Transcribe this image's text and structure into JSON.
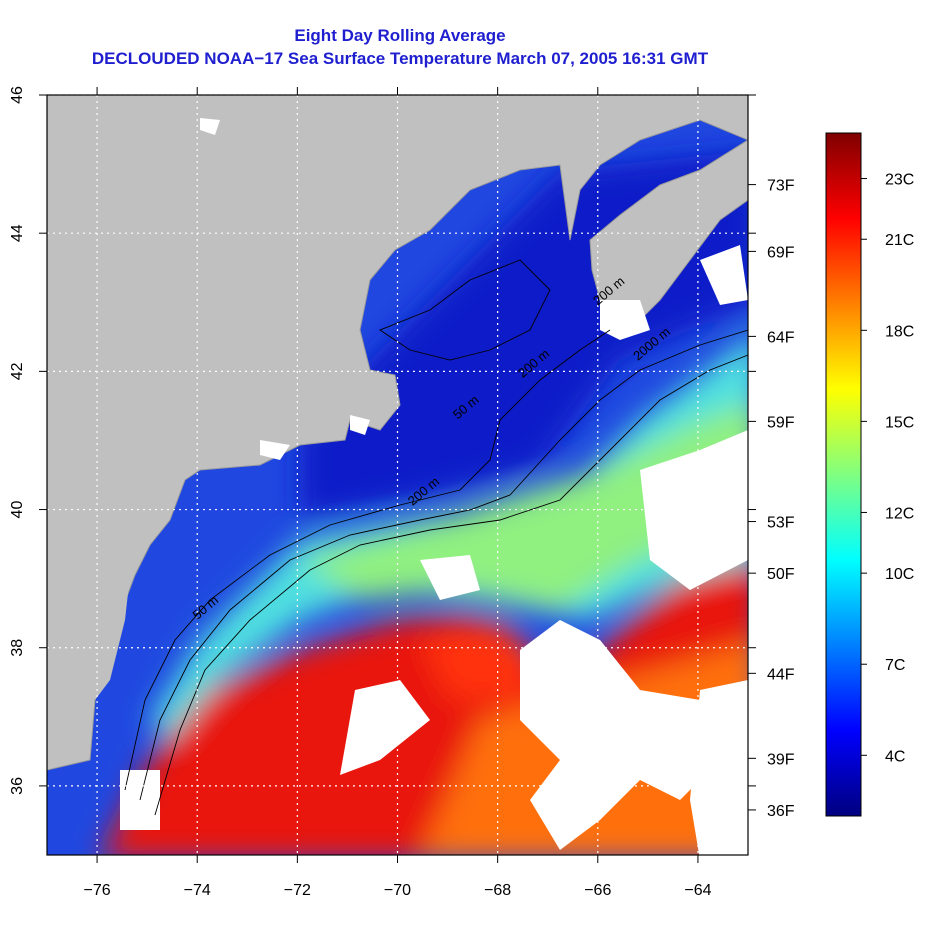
{
  "title": "Eight Day Rolling Average",
  "subtitle": "DECLOUDED NOAA−17 Sea Surface Temperature March 07, 2005 16:31 GMT",
  "map": {
    "lon_range": [
      -77,
      -63
    ],
    "lat_range": [
      35,
      46
    ],
    "lon_ticks": [
      -76,
      -74,
      -72,
      -70,
      -68,
      -66,
      -64
    ],
    "lat_ticks": [
      36,
      38,
      40,
      42,
      44,
      46
    ],
    "lon_tick_labels": [
      "−76",
      "−74",
      "−72",
      "−70",
      "−68",
      "−66",
      "−64"
    ],
    "lat_tick_labels": [
      "36",
      "38",
      "40",
      "42",
      "44",
      "46"
    ],
    "grid": true,
    "colors": {
      "land": "#c0c0c0",
      "cloud": "#ffffff",
      "contour": "#000000",
      "grid": "#ffffff"
    }
  },
  "fahrenheit_ticks": [
    {
      "label": "73F",
      "celsius": 22.8
    },
    {
      "label": "69F",
      "celsius": 20.6
    },
    {
      "label": "64F",
      "celsius": 17.8
    },
    {
      "label": "59F",
      "celsius": 15.0
    },
    {
      "label": "53F",
      "celsius": 11.7
    },
    {
      "label": "50F",
      "celsius": 10.0
    },
    {
      "label": "44F",
      "celsius": 6.7
    },
    {
      "label": "39F",
      "celsius": 3.9
    },
    {
      "label": "36F",
      "celsius": 2.2
    }
  ],
  "colorbar": {
    "range_celsius": [
      2,
      24.5
    ],
    "ticks": [
      {
        "label": "23C",
        "celsius": 23
      },
      {
        "label": "21C",
        "celsius": 21
      },
      {
        "label": "18C",
        "celsius": 18
      },
      {
        "label": "15C",
        "celsius": 15
      },
      {
        "label": "12C",
        "celsius": 12
      },
      {
        "label": "10C",
        "celsius": 10
      },
      {
        "label": "7C",
        "celsius": 7
      },
      {
        "label": "4C",
        "celsius": 4
      }
    ],
    "gradient": [
      "#00007f",
      "#0000ff",
      "#0080ff",
      "#00ffff",
      "#80ff80",
      "#ffff00",
      "#ff8000",
      "#ff0000",
      "#7f0000"
    ]
  },
  "contours": [
    {
      "label": "50 m",
      "lon": -74.0,
      "lat": 38.4
    },
    {
      "label": "200 m",
      "lon": -69.7,
      "lat": 40.05
    },
    {
      "label": "50 m",
      "lon": -68.8,
      "lat": 41.3
    },
    {
      "label": "200 m",
      "lon": -67.5,
      "lat": 41.9
    },
    {
      "label": "2000 m",
      "lon": -65.2,
      "lat": 42.15
    },
    {
      "label": "200 m",
      "lon": -66.0,
      "lat": 42.95
    }
  ]
}
